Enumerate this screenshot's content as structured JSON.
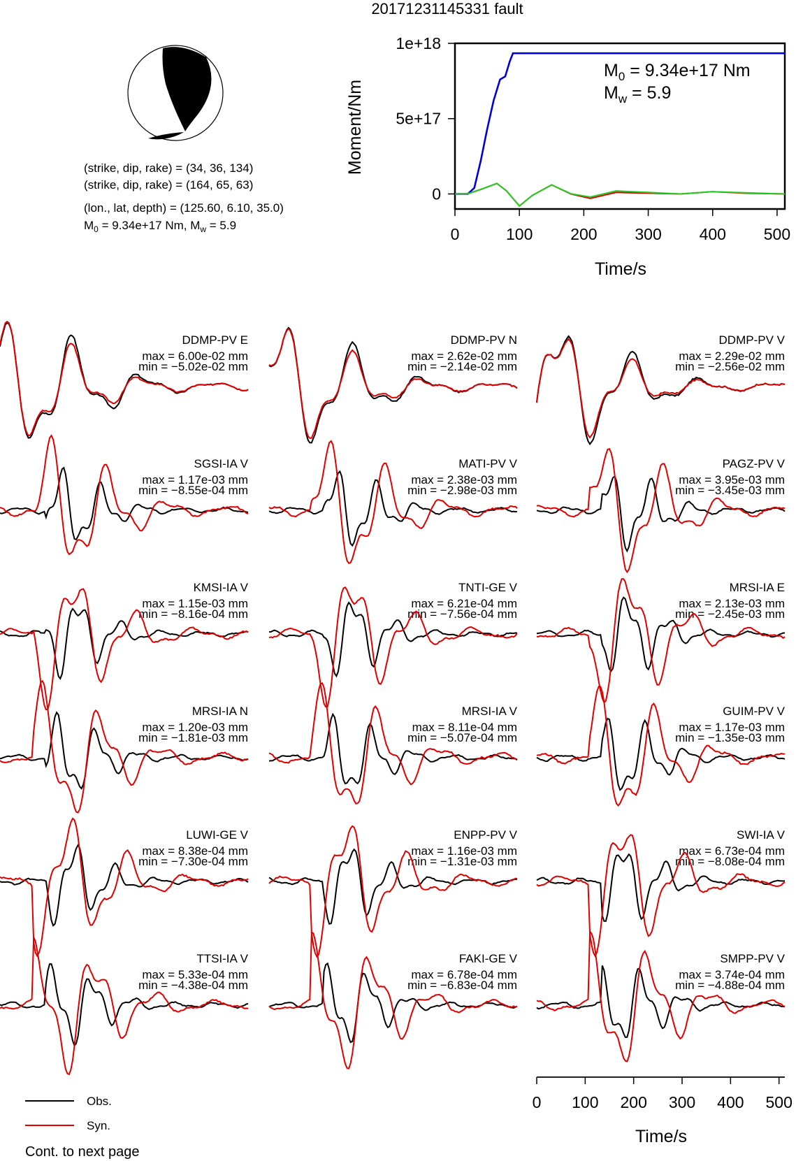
{
  "header": {
    "title": "20171231145331 fault",
    "focal_lines": [
      "(strike, dip, rake) = (34, 36, 134)",
      "(strike, dip, rake) = (164, 65, 63)",
      "(lon., lat, depth) = (125.60, 6.10, 35.0)"
    ],
    "moment_line": {
      "pre": "M",
      "sub0": "0",
      "mid": " = 9.34e+17 Nm, M",
      "subw": "w",
      "post": " = 5.9"
    }
  },
  "colors": {
    "observed": "#000000",
    "synthetic": "#e00000",
    "moment": "#0000dd",
    "green_trace": "#22cc22"
  },
  "moment_chart": {
    "type": "line",
    "ylabel": "Moment/Nm",
    "xlabel": "Time/s",
    "xlim": [
      0,
      512
    ],
    "ylim": [
      -1e+17,
      1e+18
    ],
    "x_ticks": [
      "0",
      "100",
      "200",
      "300",
      "400",
      "500"
    ],
    "y_ticks": [
      "0",
      "5e+17",
      "1e+18"
    ],
    "annotation": {
      "m0_text": " = 9.34e+17 Nm",
      "mw_text": " = 5.9",
      "m0_sym": "M",
      "m0_sub": "0",
      "mw_sym": "M",
      "mw_sub": "w"
    }
  },
  "chart_data": [
    {
      "type": "line",
      "title": "",
      "xlabel": "Time/s",
      "ylabel": "Moment/Nm",
      "xlim": [
        0,
        512
      ],
      "ylim": [
        -1e+17,
        1e+18
      ],
      "grid": false,
      "series": [
        {
          "x": [
            0,
            20,
            30,
            40,
            50,
            60,
            70,
            78,
            85,
            90,
            512
          ],
          "values": [
            0,
            0,
            4e+16,
            2.2e+17,
            4.3e+17,
            6.2e+17,
            7.6e+17,
            7.8e+17,
            8.8e+17,
            9.34e+17,
            9.34e+17
          ]
        },
        {
          "x": [
            0,
            20,
            40,
            65,
            80,
            100,
            120,
            150,
            180,
            210,
            250,
            300,
            350,
            400,
            450,
            512
          ],
          "values": [
            0,
            1000000000000000.0,
            3e+16,
            7e+16,
            2e+16,
            -8e+16,
            -1e+16,
            6e+16,
            0,
            -3e+16,
            1e+16,
            5000000000000000.0,
            0,
            1.5e+16,
            5000000000000000.0,
            0
          ]
        },
        {
          "x": [
            0,
            20,
            40,
            65,
            80,
            100,
            120,
            150,
            180,
            210,
            250,
            300,
            350,
            400,
            450,
            512
          ],
          "values": [
            0,
            1000000000000000.0,
            3e+16,
            7e+16,
            2e+16,
            -8e+16,
            -1e+16,
            6e+16,
            1000000000000000.0,
            -2e+16,
            2e+16,
            1e+16,
            0,
            1.5e+16,
            8000000000000000.0,
            0
          ]
        }
      ]
    }
  ],
  "waveforms": [
    {
      "station": "DDMP-PV E",
      "max": "max = 6.00e-02 mm",
      "min": "min = −5.02e-02 mm"
    },
    {
      "station": "DDMP-PV N",
      "max": "max = 2.62e-02 mm",
      "min": "min = −2.14e-02 mm"
    },
    {
      "station": "DDMP-PV V",
      "max": "max = 2.29e-02 mm",
      "min": "min = −2.56e-02 mm"
    },
    {
      "station": "SGSI-IA V",
      "max": "max = 1.17e-03 mm",
      "min": "min = −8.55e-04 mm"
    },
    {
      "station": "MATI-PV V",
      "max": "max = 2.38e-03 mm",
      "min": "min = −2.98e-03 mm"
    },
    {
      "station": "PAGZ-PV V",
      "max": "max = 3.95e-03 mm",
      "min": "min = −3.45e-03 mm"
    },
    {
      "station": "KMSI-IA V",
      "max": "max = 1.15e-03 mm",
      "min": "min = −8.16e-04 mm"
    },
    {
      "station": "TNTI-GE V",
      "max": "max = 6.21e-04 mm",
      "min": "min = −7.56e-04 mm"
    },
    {
      "station": "MRSI-IA E",
      "max": "max = 2.13e-03 mm",
      "min": "min = −2.45e-03 mm"
    },
    {
      "station": "MRSI-IA N",
      "max": "max = 1.20e-03 mm",
      "min": "min = −1.81e-03 mm"
    },
    {
      "station": "MRSI-IA V",
      "max": "max = 8.11e-04 mm",
      "min": "min = −5.07e-04 mm"
    },
    {
      "station": "GUIM-PV V",
      "max": "max = 1.17e-03 mm",
      "min": "min = −1.35e-03 mm"
    },
    {
      "station": "LUWI-GE V",
      "max": "max = 8.38e-04 mm",
      "min": "min = −7.30e-04 mm"
    },
    {
      "station": "ENPP-PV V",
      "max": "max = 1.16e-03 mm",
      "min": "min = −1.31e-03 mm"
    },
    {
      "station": "SWI-IA V",
      "max": "max = 6.73e-04 mm",
      "min": "min = −8.08e-04 mm"
    },
    {
      "station": "TTSI-IA V",
      "max": "max = 5.33e-04 mm",
      "min": "min = −4.38e-04 mm"
    },
    {
      "station": "FAKI-GE V",
      "max": "max = 6.78e-04 mm",
      "min": "min = −6.83e-04 mm"
    },
    {
      "station": "SMPP-PV V",
      "max": "max = 3.74e-04 mm",
      "min": "min = −4.88e-04 mm"
    }
  ],
  "waveform_axis": {
    "xlabel": "Time/s",
    "x_ticks": [
      "0",
      "100",
      "200",
      "300",
      "400",
      "500"
    ],
    "xlim": [
      0,
      512
    ]
  },
  "legend": {
    "observed": "Obs.",
    "synthetic": "Syn."
  },
  "footer": {
    "note": "Cont. to next page"
  }
}
